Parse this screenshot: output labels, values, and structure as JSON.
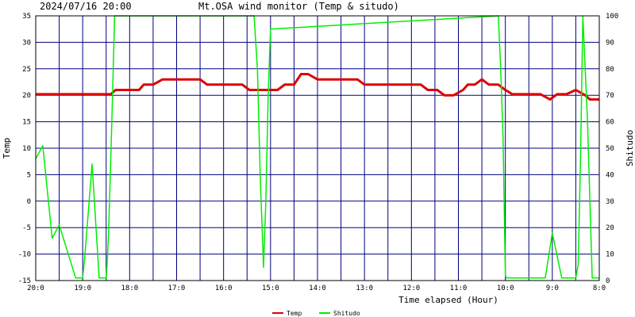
{
  "header": {
    "timestamp": "2024/07/16 20:00",
    "title": "Mt.OSA wind monitor (Temp & situdo)"
  },
  "chart_data": {
    "type": "line",
    "xlabel": "Time elapsed (Hour)",
    "ylabel_left": "Temp",
    "ylabel_right": "Shitudo",
    "ylim_left": [
      -15,
      35
    ],
    "ylim_right": [
      0,
      100
    ],
    "yticks_left": [
      35,
      30,
      25,
      20,
      15,
      10,
      5,
      0,
      -5,
      -10,
      -15
    ],
    "yticks_right": [
      100,
      90,
      80,
      70,
      60,
      50,
      40,
      30,
      20,
      10,
      0
    ],
    "xlim": [
      0,
      12
    ],
    "xtick_labels": [
      "20:0",
      "19:0",
      "18:0",
      "17:0",
      "16:0",
      "15:0",
      "14:0",
      "13:0",
      "12:0",
      "11:0",
      "10:0",
      "9:0",
      "8:0"
    ],
    "xtick_positions": [
      0,
      1,
      2,
      3,
      4,
      5,
      6,
      7,
      8,
      9,
      10,
      11,
      12
    ],
    "minor_gridlines": [
      0.5,
      1.5,
      2.5,
      3.5,
      4.5,
      5.5,
      6.5,
      7.5,
      8.5,
      9.5,
      10.5,
      11.5
    ],
    "grid": true,
    "legend_position": "bottom-center",
    "colors": {
      "plot_bg": "#ffffff",
      "grid": "#000080",
      "temp": "#dd0000",
      "shitudo": "#00ee00"
    },
    "series": [
      {
        "name": "Temp",
        "axis": "left",
        "color": "#dd0000",
        "points": [
          [
            0,
            20.2
          ],
          [
            1.5,
            20.2
          ],
          [
            1.6,
            20.2
          ],
          [
            1.7,
            21
          ],
          [
            2.2,
            21
          ],
          [
            2.3,
            22
          ],
          [
            2.5,
            22
          ],
          [
            2.7,
            23
          ],
          [
            3.5,
            23
          ],
          [
            3.65,
            22
          ],
          [
            4.4,
            22
          ],
          [
            4.55,
            21
          ],
          [
            5.15,
            21
          ],
          [
            5.3,
            22
          ],
          [
            5.5,
            22
          ],
          [
            5.65,
            24
          ],
          [
            5.8,
            24
          ],
          [
            6.0,
            23
          ],
          [
            6.85,
            23
          ],
          [
            7.0,
            22
          ],
          [
            8.2,
            22
          ],
          [
            8.35,
            21
          ],
          [
            8.55,
            21
          ],
          [
            8.7,
            20
          ],
          [
            8.9,
            20
          ],
          [
            9.1,
            21
          ],
          [
            9.2,
            22
          ],
          [
            9.35,
            22
          ],
          [
            9.5,
            23
          ],
          [
            9.65,
            22
          ],
          [
            9.85,
            22
          ],
          [
            10.0,
            21
          ],
          [
            10.15,
            20.2
          ],
          [
            10.75,
            20.2
          ],
          [
            10.95,
            19.2
          ],
          [
            11.1,
            20.2
          ],
          [
            11.3,
            20.2
          ],
          [
            11.5,
            21
          ],
          [
            11.7,
            20
          ],
          [
            11.8,
            19.2
          ],
          [
            12,
            19.2
          ]
        ]
      },
      {
        "name": "Shitudo",
        "axis": "right",
        "color": "#00ee00",
        "points": [
          [
            0,
            46
          ],
          [
            0.15,
            51
          ],
          [
            0.35,
            16
          ],
          [
            0.5,
            21
          ],
          [
            0.85,
            1
          ],
          [
            1.0,
            1
          ],
          [
            1.05,
            10
          ],
          [
            1.2,
            44
          ],
          [
            1.35,
            1
          ],
          [
            1.5,
            1
          ],
          [
            1.52,
            6
          ],
          [
            1.55,
            17
          ],
          [
            1.62,
            60
          ],
          [
            1.68,
            100
          ],
          [
            4.65,
            100
          ],
          [
            4.72,
            80
          ],
          [
            4.78,
            40
          ],
          [
            4.85,
            5
          ],
          [
            4.9,
            30
          ],
          [
            4.95,
            70
          ],
          [
            5.0,
            95
          ],
          [
            9.85,
            100
          ],
          [
            9.9,
            80
          ],
          [
            9.95,
            55
          ],
          [
            10.0,
            2
          ],
          [
            10.02,
            1
          ],
          [
            10.85,
            1
          ],
          [
            11.0,
            18
          ],
          [
            11.2,
            1
          ],
          [
            11.5,
            1
          ],
          [
            11.55,
            6
          ],
          [
            11.6,
            45
          ],
          [
            11.65,
            100
          ],
          [
            11.75,
            60
          ],
          [
            11.85,
            1
          ],
          [
            12,
            1
          ]
        ]
      }
    ]
  }
}
